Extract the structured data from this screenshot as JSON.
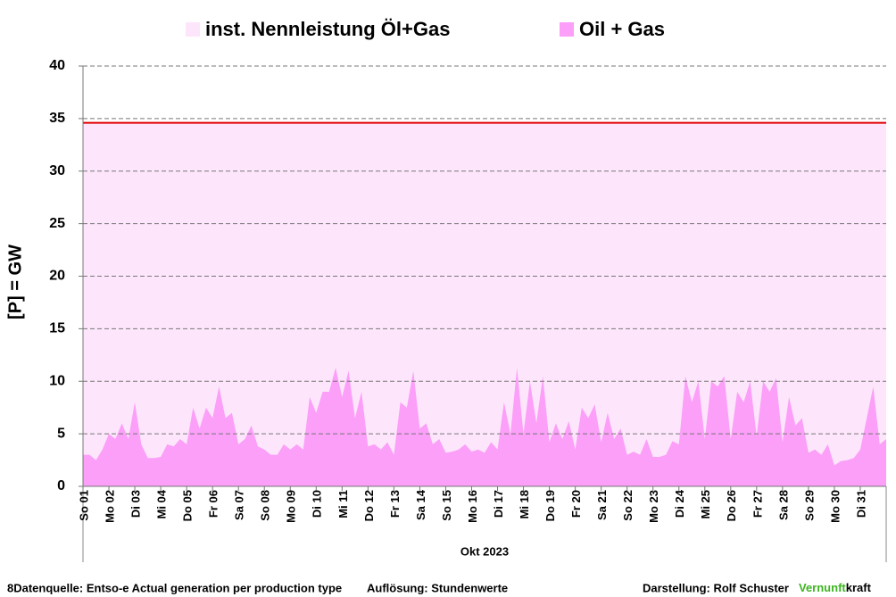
{
  "chart_data": {
    "type": "area",
    "xlabel": "Okt 2023",
    "ylabel": "[P]  = GW",
    "xlim": [
      0,
      744
    ],
    "ylim": [
      0,
      40
    ],
    "yticks": [
      0,
      5,
      10,
      15,
      20,
      25,
      30,
      35,
      40
    ],
    "grid": true,
    "xticks": [
      {
        "value": 0,
        "label": "So 01"
      },
      {
        "value": 24,
        "label": "Mo 02"
      },
      {
        "value": 48,
        "label": "Di 03"
      },
      {
        "value": 72,
        "label": "Mi 04"
      },
      {
        "value": 96,
        "label": "Do 05"
      },
      {
        "value": 120,
        "label": "Fr 06"
      },
      {
        "value": 144,
        "label": "Sa 07"
      },
      {
        "value": 168,
        "label": "So 08"
      },
      {
        "value": 192,
        "label": "Mo 09"
      },
      {
        "value": 216,
        "label": "Di 10"
      },
      {
        "value": 240,
        "label": "Mi 11"
      },
      {
        "value": 264,
        "label": "Do 12"
      },
      {
        "value": 288,
        "label": "Fr 13"
      },
      {
        "value": 312,
        "label": "Sa 14"
      },
      {
        "value": 336,
        "label": "So 15"
      },
      {
        "value": 360,
        "label": "Mo 16"
      },
      {
        "value": 384,
        "label": "Di 17"
      },
      {
        "value": 408,
        "label": "Mi 18"
      },
      {
        "value": 432,
        "label": "Do 19"
      },
      {
        "value": 456,
        "label": "Fr 20"
      },
      {
        "value": 480,
        "label": "Sa 21"
      },
      {
        "value": 504,
        "label": "So 22"
      },
      {
        "value": 528,
        "label": "Mo 23"
      },
      {
        "value": 552,
        "label": "Di 24"
      },
      {
        "value": 576,
        "label": "Mi 25"
      },
      {
        "value": 600,
        "label": "Do 26"
      },
      {
        "value": 624,
        "label": "Fr 27"
      },
      {
        "value": 648,
        "label": "Sa 28"
      },
      {
        "value": 672,
        "label": "So 29"
      },
      {
        "value": 696,
        "label": "Mo 30"
      },
      {
        "value": 720,
        "label": "Di 31"
      }
    ],
    "series": [
      {
        "name": "inst. Nennleistung Öl+Gas",
        "color": "#fde6fb",
        "line_color": "#e00000",
        "x": [
          0,
          744
        ],
        "values": [
          34.6,
          34.6
        ]
      },
      {
        "name": "Oil + Gas",
        "color": "#fb9ff8",
        "x": [
          0,
          6,
          12,
          18,
          24,
          30,
          36,
          42,
          48,
          54,
          60,
          66,
          72,
          78,
          84,
          90,
          96,
          102,
          108,
          114,
          120,
          126,
          132,
          138,
          144,
          150,
          156,
          162,
          168,
          174,
          180,
          186,
          192,
          198,
          204,
          210,
          216,
          222,
          228,
          234,
          240,
          246,
          252,
          258,
          264,
          270,
          276,
          282,
          288,
          294,
          300,
          306,
          312,
          318,
          324,
          330,
          336,
          342,
          348,
          354,
          360,
          366,
          372,
          378,
          384,
          390,
          396,
          402,
          408,
          414,
          420,
          426,
          432,
          438,
          444,
          450,
          456,
          462,
          468,
          474,
          480,
          486,
          492,
          498,
          504,
          510,
          516,
          522,
          528,
          534,
          540,
          546,
          552,
          558,
          564,
          570,
          576,
          582,
          588,
          594,
          600,
          606,
          612,
          618,
          624,
          630,
          636,
          642,
          648,
          654,
          660,
          666,
          672,
          678,
          684,
          690,
          696,
          702,
          708,
          714,
          720,
          726,
          732,
          738,
          744
        ],
        "values": [
          3,
          3,
          2.5,
          3.5,
          5,
          4.5,
          6,
          4.5,
          8,
          4,
          2.7,
          2.7,
          2.8,
          4,
          3.8,
          4.5,
          4,
          7.5,
          5.5,
          7.5,
          6.5,
          9.5,
          6.5,
          7,
          4,
          4.5,
          5.8,
          3.8,
          3.5,
          3,
          3,
          4,
          3.5,
          4,
          3.5,
          8.5,
          7,
          9,
          9,
          11.3,
          8.5,
          11,
          6.5,
          9,
          3.8,
          4,
          3.5,
          4.2,
          3,
          8,
          7.5,
          11,
          5.5,
          6,
          4,
          4.5,
          3.2,
          3.3,
          3.5,
          4,
          3.3,
          3.5,
          3.2,
          4.2,
          3.5,
          8,
          5,
          11.3,
          5,
          10,
          6,
          10.5,
          4.2,
          6,
          4.5,
          6.2,
          3.5,
          7.5,
          6.5,
          7.8,
          4.2,
          7,
          4.5,
          5.5,
          3,
          3.3,
          3,
          4.5,
          2.8,
          2.8,
          3,
          4.3,
          4,
          10.5,
          8,
          10,
          4.5,
          10,
          9.5,
          10.5,
          4.5,
          9,
          8,
          10,
          4.8,
          10,
          9,
          10.3,
          4.2,
          8.5,
          5.8,
          6.5,
          3.2,
          3.5,
          3,
          4,
          2,
          2.4,
          2.5,
          2.7,
          3.5,
          6.5,
          9.5,
          4,
          4.5
        ]
      }
    ]
  },
  "footer": {
    "source": "8Datenquelle: Entso-e  Actual generation per production type",
    "resolution": "Auflösung: Stundenwerte",
    "author": "Darstellung:  Rolf Schuster",
    "brand_green": "Vernunft",
    "brand_rest": "kraft"
  }
}
